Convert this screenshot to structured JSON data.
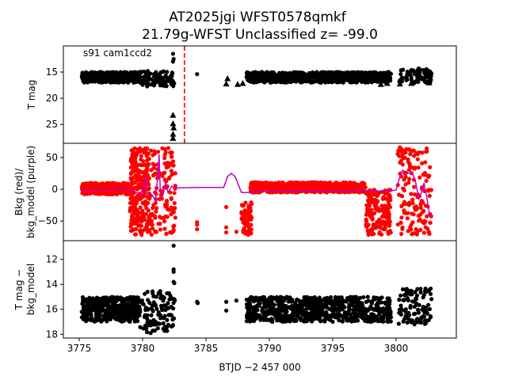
{
  "chart_data": {
    "type": "scatter",
    "title": [
      "AT2025jgi  WFST0578qmkf",
      "21.79g-WFST Unclassified z= -99.0"
    ],
    "xlabel": "BTJD −2 457 000",
    "xlim": [
      3773.75,
      3804.75
    ],
    "xticks": [
      3775,
      3780,
      3785,
      3790,
      3795,
      3800
    ],
    "marker_line": {
      "x": 3783.3,
      "color": "#ff0000",
      "style": "dashed"
    },
    "panels": [
      {
        "ylabel": [
          "T mag"
        ],
        "ylim": [
          28.6,
          10
        ],
        "inverted": true,
        "yticks": [
          15,
          20,
          25
        ],
        "annotation": "s91 cam1ccd2",
        "color": "#000000",
        "bands": [
          [
            3775.2,
            3779.8,
            15,
            17,
            420
          ],
          [
            3779.8,
            3782.5,
            14.8,
            17.8,
            90
          ],
          [
            3788.2,
            3799.6,
            15,
            17,
            700
          ],
          [
            3800.2,
            3802.8,
            14.3,
            17.2,
            90
          ]
        ],
        "points": [
          [
            3782.4,
            11.5
          ],
          [
            3782.45,
            12.5
          ],
          [
            3782.4,
            13.0
          ],
          [
            3784.3,
            15.4
          ]
        ],
        "upper_limits": [
          [
            3782.4,
            23.2
          ],
          [
            3782.4,
            24.8
          ],
          [
            3782.45,
            25.6
          ],
          [
            3782.4,
            26.8
          ],
          [
            3782.4,
            27.6
          ],
          [
            3786.6,
            17.2
          ],
          [
            3786.7,
            16.2
          ],
          [
            3787.5,
            17.3
          ],
          [
            3787.9,
            17.1
          ],
          [
            3798.8,
            17.3
          ],
          [
            3799.3,
            17.1
          ],
          [
            3800.3,
            17.2
          ],
          [
            3801.2,
            17.1
          ],
          [
            3802.6,
            17.0
          ]
        ]
      },
      {
        "ylabel": [
          "Bkg (red)/",
          "bkg_model (purple)"
        ],
        "ylim": [
          -81,
          72.5
        ],
        "yticks": [
          50,
          0,
          -50
        ],
        "color": "#ff0000",
        "bands": [
          [
            3775.2,
            3779.0,
            -8,
            10,
            380
          ],
          [
            3779.0,
            3780.5,
            -72,
            65,
            260
          ],
          [
            3780.5,
            3782.6,
            -72,
            65,
            140
          ],
          [
            3787.8,
            3788.6,
            -72,
            -20,
            70
          ],
          [
            3788.5,
            3797.6,
            -5,
            11,
            700
          ],
          [
            3797.6,
            3799.6,
            -72,
            0,
            160
          ],
          [
            3800.1,
            3802.8,
            -72,
            65,
            150
          ]
        ],
        "points": [
          [
            3784.3,
            -52
          ],
          [
            3784.3,
            -56
          ],
          [
            3784.3,
            -63
          ],
          [
            3786.6,
            -28
          ],
          [
            3786.6,
            -60
          ],
          [
            3786.6,
            -68
          ],
          [
            3787.4,
            -67
          ],
          [
            3800.3,
            66
          ]
        ],
        "model_color": "#bf00bf",
        "model_line": [
          [
            3775.2,
            -3
          ],
          [
            3776,
            0
          ],
          [
            3777,
            -1
          ],
          [
            3778,
            0
          ],
          [
            3779,
            -1
          ],
          [
            3779.5,
            -5
          ],
          [
            3780,
            -8
          ],
          [
            3780.2,
            20
          ],
          [
            3780.3,
            -5
          ],
          [
            3780.8,
            -10
          ],
          [
            3781,
            -18
          ],
          [
            3781.2,
            20
          ],
          [
            3781.3,
            55
          ],
          [
            3781.4,
            -5
          ],
          [
            3781.6,
            -10
          ],
          [
            3781.8,
            10
          ],
          [
            3782,
            -5
          ],
          [
            3782.3,
            5
          ],
          [
            3782.5,
            2
          ],
          [
            3784.3,
            3
          ],
          [
            3786.4,
            3
          ],
          [
            3786.7,
            20
          ],
          [
            3787,
            25
          ],
          [
            3787.3,
            20
          ],
          [
            3787.8,
            -5
          ],
          [
            3788.5,
            -5
          ],
          [
            3789,
            -3
          ],
          [
            3792,
            -2
          ],
          [
            3795,
            -2
          ],
          [
            3797.5,
            -2
          ],
          [
            3798.5,
            -3
          ],
          [
            3799.5,
            -3
          ],
          [
            3800,
            -1
          ],
          [
            3800.3,
            20
          ],
          [
            3800.5,
            30
          ],
          [
            3801,
            25
          ],
          [
            3801.3,
            25
          ],
          [
            3801.5,
            15
          ],
          [
            3801.8,
            -15
          ],
          [
            3802,
            -5
          ],
          [
            3802.2,
            10
          ],
          [
            3802.4,
            -10
          ],
          [
            3802.6,
            -35
          ],
          [
            3802.7,
            -45
          ]
        ]
      },
      {
        "ylabel": [
          "T mag −",
          "bkg_model"
        ],
        "ylim": [
          18.3,
          10.5
        ],
        "inverted": true,
        "yticks": [
          12,
          14,
          16,
          18
        ],
        "color": "#000000",
        "bands": [
          [
            3775.2,
            3779.8,
            15,
            17,
            420
          ],
          [
            3779.8,
            3782.6,
            14.5,
            17.9,
            110
          ],
          [
            3788.2,
            3799.6,
            15,
            17,
            700
          ],
          [
            3800.2,
            3802.8,
            14.3,
            17.2,
            100
          ]
        ],
        "points": [
          [
            3782.45,
            10.9
          ],
          [
            3782.45,
            12.8
          ],
          [
            3782.45,
            13.0
          ],
          [
            3782.45,
            13.8
          ],
          [
            3782.5,
            13.9
          ],
          [
            3784.3,
            15.4
          ],
          [
            3784.35,
            15.5
          ],
          [
            3786.6,
            15.4
          ],
          [
            3786.6,
            16.1
          ],
          [
            3787.4,
            15.3
          ]
        ],
        "upper_limits": []
      }
    ]
  }
}
